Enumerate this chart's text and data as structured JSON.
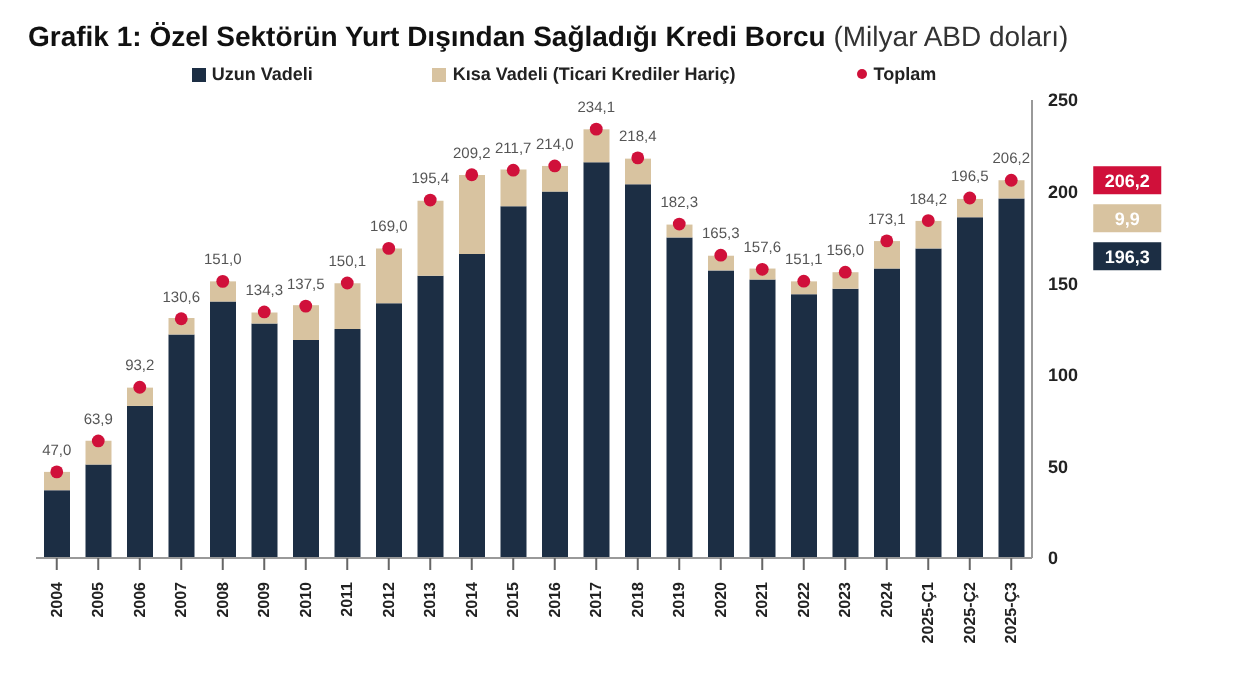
{
  "chart_data": {
    "type": "bar",
    "title": "Grafik 1: Özel Sektörün Yurt Dışından Sağladığı Kredi Borcu",
    "subtitle": "(Milyar ABD doları)",
    "categories": [
      "2004",
      "2005",
      "2006",
      "2007",
      "2008",
      "2009",
      "2010",
      "2011",
      "2012",
      "2013",
      "2014",
      "2015",
      "2016",
      "2017",
      "2018",
      "2019",
      "2020",
      "2021",
      "2022",
      "2023",
      "2024",
      "2025-Ç1",
      "2025-Ç2",
      "2025-Ç3"
    ],
    "stacked": true,
    "series": [
      {
        "name": "Uzun Vadeli",
        "color": "#1c2e44",
        "values": [
          37,
          51,
          83,
          122,
          140,
          128,
          119,
          125,
          139,
          154,
          166,
          192,
          200,
          216,
          204,
          175,
          157,
          152,
          144,
          147,
          158,
          169,
          186,
          196.3
        ]
      },
      {
        "name": "Kısa Vadeli (Ticari Krediler Hariç)",
        "color": "#d8c3a0",
        "values": [
          10,
          13,
          10,
          9,
          11,
          6,
          19,
          25,
          30,
          41,
          43,
          20,
          14,
          18,
          14,
          7,
          8,
          6,
          7,
          9,
          15,
          15,
          10,
          9.9
        ]
      },
      {
        "name": "Toplam",
        "type": "scatter",
        "color": "#d0103a",
        "values": [
          47.0,
          63.9,
          93.2,
          130.6,
          151.0,
          134.3,
          137.5,
          150.1,
          169.0,
          195.4,
          209.2,
          211.7,
          214.0,
          234.1,
          218.4,
          182.3,
          165.3,
          157.6,
          151.1,
          156.0,
          173.1,
          184.2,
          196.5,
          206.2
        ],
        "value_labels": [
          "47,0",
          "63,9",
          "93,2",
          "130,6",
          "151,0",
          "134,3",
          "137,5",
          "150,1",
          "169,0",
          "195,4",
          "209,2",
          "211,7",
          "214,0",
          "234,1",
          "218,4",
          "182,3",
          "165,3",
          "157,6",
          "151,1",
          "156,0",
          "173,1",
          "184,2",
          "196,5",
          "206,2"
        ]
      }
    ],
    "annotations": [
      "206,2",
      "9,9",
      "196,3"
    ],
    "ylim": [
      0,
      250
    ],
    "yticks": [
      0,
      50,
      100,
      150,
      200,
      250
    ],
    "grid": false,
    "legend": "top",
    "marker": "circle"
  }
}
